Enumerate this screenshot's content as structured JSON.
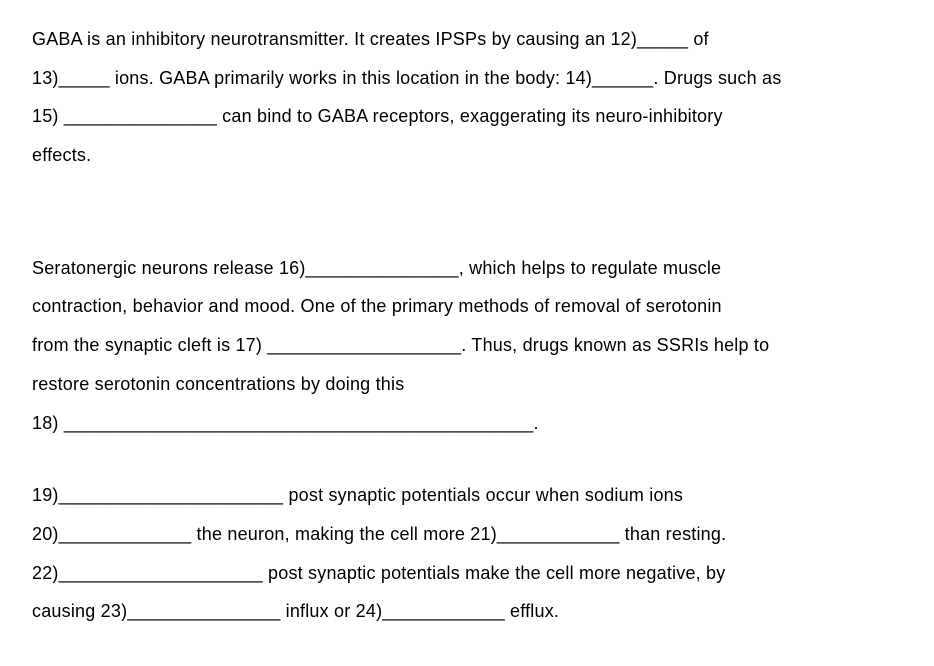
{
  "paragraph1": {
    "line1_a": "GABA is an inhibitory neurotransmitter.  It creates IPSPs by causing an 12)_____ of",
    "line2_a": "13)_____ ions.  GABA primarily works in this location in the body: 14)______.  Drugs such as",
    "line3_a": "15) _______________ can bind to GABA receptors, exaggerating its neuro-inhibitory",
    "line4_a": "effects."
  },
  "paragraph2": {
    "line1": "Seratonergic neurons release 16)_______________, which helps to regulate muscle",
    "line2": "contraction, behavior and mood.  One of the primary methods of removal of serotonin",
    "line3": "from the synaptic cleft is 17) ___________________.  Thus, drugs known as SSRIs help to",
    "line4": "restore serotonin concentrations by doing this",
    "line5": "18) ______________________________________________."
  },
  "paragraph3": {
    "line1": "19)______________________ post synaptic potentials occur when sodium ions",
    "line2": "20)_____________ the neuron, making the cell more 21)____________ than resting.",
    "line3": "22)____________________ post synaptic potentials make the cell more negative, by",
    "line4": "causing 23)_______________ influx or 24)____________ efflux."
  }
}
